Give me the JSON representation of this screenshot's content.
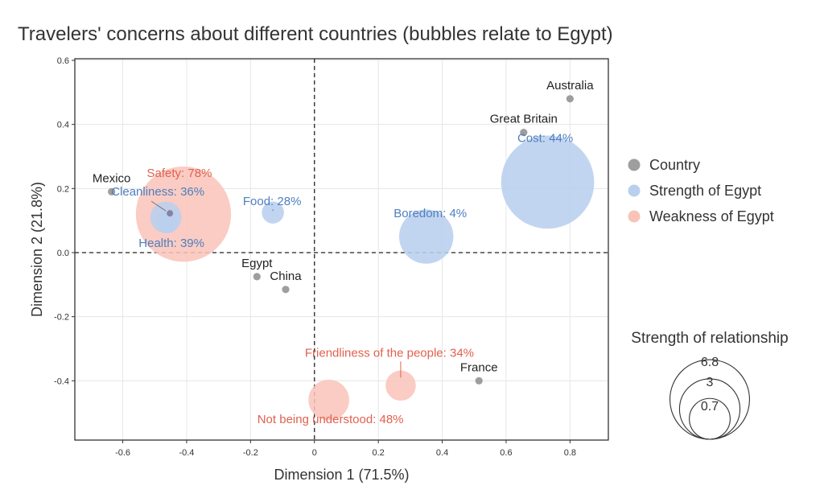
{
  "chart_data": {
    "type": "scatter",
    "title": "Travelers' concerns about different countries (bubbles relate to Egypt)",
    "xlabel": "Dimension 1 (71.5%)",
    "ylabel": "Dimension 2 (21.8%)",
    "xlim": [
      -0.75,
      0.92
    ],
    "ylim": [
      -0.585,
      0.605
    ],
    "x_ticks": [
      -0.6,
      -0.4,
      -0.2,
      0.0,
      0.2,
      0.4,
      0.6,
      0.8
    ],
    "x_tick_labels": [
      "-0.6",
      "-0.4",
      "-0.2",
      "0",
      "0.2",
      "0.4",
      "0.6",
      "0.8"
    ],
    "y_ticks": [
      -0.4,
      -0.2,
      0.0,
      0.2,
      0.4,
      0.6
    ],
    "y_tick_labels": [
      "-0.4",
      "-0.2",
      "0.0",
      "0.2",
      "0.4",
      "0.6"
    ],
    "grid": true,
    "reference_lines": {
      "x": 0,
      "y": 0
    },
    "colors": {
      "country": "#9e9e9e",
      "strength": "#b9cfee",
      "strength_text": "#4d7fbf",
      "weakness": "#f9c3b8",
      "weakness_text": "#e0614f",
      "country_text": "#222222"
    },
    "series": [
      {
        "name": "Country",
        "points": [
          {
            "label": "Australia",
            "x": 0.8,
            "y": 0.48
          },
          {
            "label": "Great Britain",
            "x": 0.655,
            "y": 0.375
          },
          {
            "label": "Mexico",
            "x": -0.635,
            "y": 0.19
          },
          {
            "label": "Egypt",
            "x": -0.18,
            "y": -0.075
          },
          {
            "label": "China",
            "x": -0.09,
            "y": -0.115
          },
          {
            "label": "France",
            "x": 0.515,
            "y": -0.4
          }
        ]
      },
      {
        "name": "Strength of Egypt",
        "points": [
          {
            "label": "Cost: 44%",
            "x": 0.73,
            "y": 0.22,
            "size": 7.5
          },
          {
            "label": "Boredom: 4%",
            "x": 0.35,
            "y": 0.05,
            "size": 2.0
          },
          {
            "label": "Food: 28%",
            "x": -0.13,
            "y": 0.125,
            "size": 0.1
          },
          {
            "label": "Cleanliness: 36%",
            "x": -0.465,
            "y": 0.11,
            "size": 0.4
          },
          {
            "label": "Health: 39%",
            "x": -0.46,
            "y": 0.095,
            "size": 0.1
          }
        ]
      },
      {
        "name": "Weakness of Egypt",
        "points": [
          {
            "label": "Safety: 78%",
            "x": -0.41,
            "y": 0.12,
            "size": 7.9
          },
          {
            "label": "Not being understood: 48%",
            "x": 0.045,
            "y": -0.46,
            "size": 0.9
          },
          {
            "label": "Friendliness of the people: 34%",
            "x": 0.27,
            "y": -0.415,
            "size": 0.35
          }
        ]
      }
    ],
    "legend": {
      "placement": "right",
      "entries": [
        "Country",
        "Strength of Egypt",
        "Weakness of Egypt"
      ]
    },
    "size_legend": {
      "title": "Strength of relationship",
      "values": [
        6.8,
        3,
        0.7
      ],
      "labels": [
        "6.8",
        "3",
        "0.7"
      ]
    }
  }
}
